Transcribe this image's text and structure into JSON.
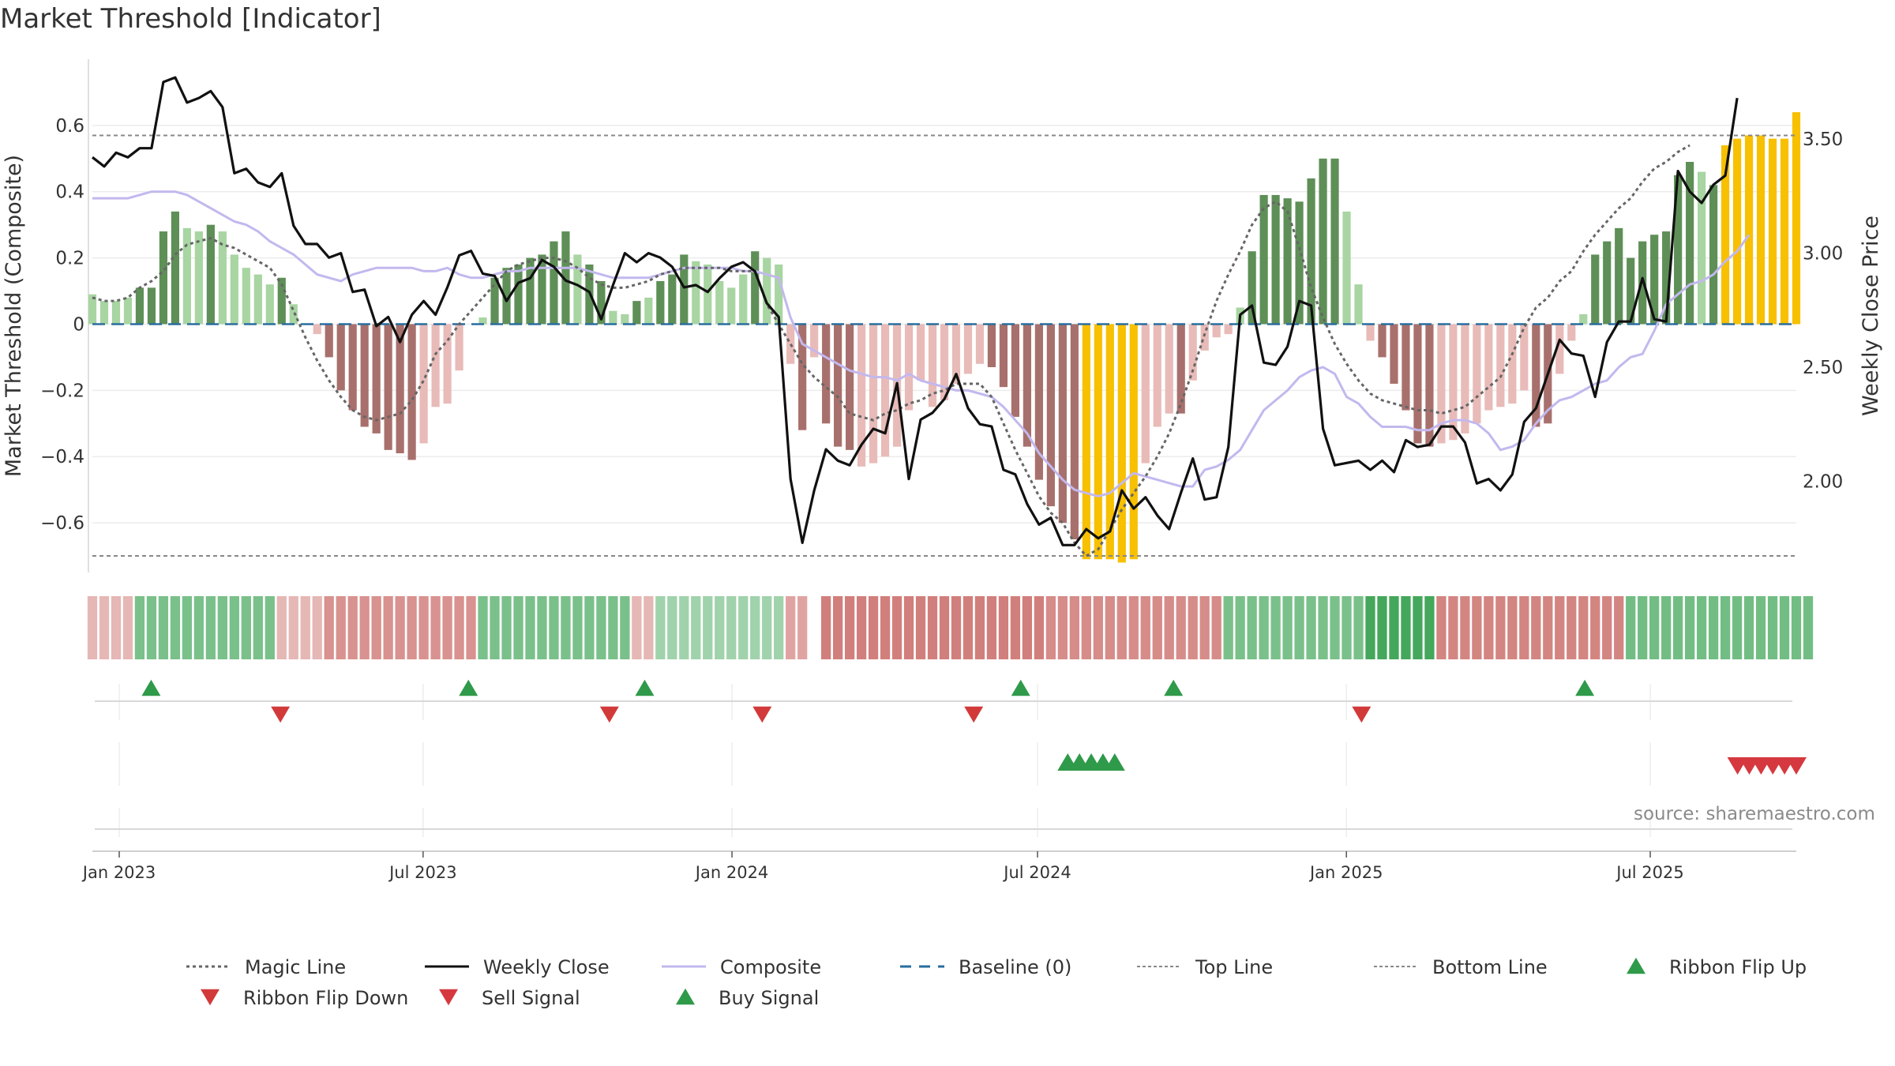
{
  "title": "Market Threshold [Indicator]",
  "source": "source: sharemaestro.com",
  "colors": {
    "dark_green": "#5e8f57",
    "light_green": "#a8d5a2",
    "dark_red": "#a8706c",
    "light_red": "#e8bbb8",
    "yellow": "#f7c000",
    "close": "#111111",
    "composite": "#c3b8ee",
    "magic": "#666666",
    "baseline": "#2a6e9e",
    "ref_lines": "#888888",
    "signal_green": "#2f9a4a",
    "signal_red": "#d5393f"
  },
  "chart_data": {
    "type": "bar",
    "title": "Market Threshold [Indicator]",
    "ylabel": "Market Threshold (Composite)",
    "y2label": "Weekly Close Price",
    "ylim": [
      -0.75,
      0.8
    ],
    "y2lim": [
      1.6,
      3.85
    ],
    "yticks": [
      0.6,
      0.4,
      0.2,
      0,
      -0.2,
      -0.4,
      -0.6
    ],
    "ytick_labels": [
      "0.6",
      "0.4",
      "0.2",
      "0",
      "−0.2",
      "−0.4",
      "−0.6"
    ],
    "y2ticks": [
      3.5,
      3.0,
      2.5,
      2.0
    ],
    "y2tick_labels": [
      "3.50",
      "3.00",
      "2.50",
      "2.00"
    ],
    "x_start": "2022-12-16",
    "x_end": "2025-09-26",
    "xticks": [
      "2023-01-01",
      "2023-07-01",
      "2024-01-01",
      "2024-07-01",
      "2025-01-01",
      "2025-07-01"
    ],
    "xtick_labels": [
      "Jan 2023",
      "Jul 2023",
      "Jan 2024",
      "Jul 2024",
      "Jan 2025",
      "Jul 2025"
    ],
    "top_line": 0.57,
    "bottom_line": -0.7,
    "baseline": 0,
    "grid": true,
    "bars": [
      0.09,
      0.07,
      0.07,
      0.08,
      0.11,
      0.11,
      0.28,
      0.34,
      0.29,
      0.28,
      0.3,
      0.28,
      0.21,
      0.17,
      0.15,
      0.12,
      0.14,
      0.06,
      0,
      -0.03,
      -0.1,
      -0.2,
      -0.26,
      -0.31,
      -0.33,
      -0.38,
      -0.39,
      -0.41,
      -0.36,
      -0.25,
      -0.24,
      -0.14,
      0,
      0.02,
      0.14,
      0.17,
      0.18,
      0.2,
      0.21,
      0.25,
      0.28,
      0.21,
      0.18,
      0.13,
      0.04,
      0.03,
      0.07,
      0.08,
      0.13,
      0.15,
      0.21,
      0.19,
      0.18,
      0.13,
      0.11,
      0.15,
      0.22,
      0.2,
      0.18,
      -0.12,
      -0.32,
      -0.1,
      -0.3,
      -0.37,
      -0.38,
      -0.43,
      -0.42,
      -0.4,
      -0.37,
      -0.26,
      -0.17,
      -0.25,
      -0.23,
      -0.18,
      -0.15,
      -0.12,
      -0.13,
      -0.19,
      -0.28,
      -0.37,
      -0.47,
      -0.55,
      -0.6,
      -0.65,
      -0.71,
      -0.71,
      -0.71,
      -0.72,
      -0.71,
      -0.42,
      -0.31,
      -0.27,
      -0.27,
      -0.17,
      -0.08,
      -0.04,
      -0.03,
      0.05,
      0.22,
      0.39,
      0.39,
      0.38,
      0.37,
      0.44,
      0.5,
      0.5,
      0.34,
      0.12,
      -0.05,
      -0.1,
      -0.18,
      -0.26,
      -0.36,
      -0.37,
      -0.36,
      -0.35,
      -0.33,
      -0.3,
      -0.26,
      -0.25,
      -0.24,
      -0.2,
      -0.31,
      -0.3,
      -0.15,
      -0.05,
      0.03,
      0.21,
      0.25,
      0.29,
      0.2,
      0.25,
      0.27,
      0.28,
      0.45,
      0.49,
      0.46,
      0.42,
      0.54,
      0.56,
      0.57,
      0.57,
      0.56,
      0.56,
      0.64
    ],
    "bar_types": [
      "l",
      "l",
      "l",
      "l",
      "d",
      "d",
      "d",
      "d",
      "l",
      "l",
      "d",
      "l",
      "l",
      "l",
      "l",
      "l",
      "d",
      "l",
      "l",
      "l",
      "d",
      "d",
      "d",
      "d",
      "d",
      "d",
      "d",
      "d",
      "l",
      "l",
      "l",
      "l",
      "l",
      "l",
      "d",
      "d",
      "d",
      "d",
      "d",
      "d",
      "d",
      "l",
      "d",
      "d",
      "l",
      "l",
      "d",
      "l",
      "d",
      "d",
      "d",
      "l",
      "l",
      "l",
      "l",
      "l",
      "d",
      "l",
      "l",
      "l",
      "d",
      "l",
      "d",
      "d",
      "d",
      "l",
      "l",
      "l",
      "l",
      "l",
      "l",
      "l",
      "l",
      "l",
      "l",
      "l",
      "d",
      "d",
      "d",
      "d",
      "d",
      "d",
      "d",
      "d",
      "y",
      "y",
      "y",
      "y",
      "y",
      "l",
      "l",
      "l",
      "d",
      "l",
      "l",
      "l",
      "l",
      "l",
      "d",
      "d",
      "d",
      "d",
      "d",
      "d",
      "d",
      "d",
      "l",
      "l",
      "l",
      "d",
      "d",
      "d",
      "d",
      "d",
      "l",
      "l",
      "l",
      "l",
      "l",
      "l",
      "l",
      "l",
      "d",
      "d",
      "l",
      "l",
      "l",
      "d",
      "d",
      "d",
      "d",
      "d",
      "d",
      "d",
      "d",
      "d",
      "l",
      "d",
      "y",
      "y",
      "y",
      "y",
      "y",
      "y",
      "y"
    ],
    "weekly_close": [
      3.42,
      3.38,
      3.44,
      3.42,
      3.46,
      3.46,
      3.75,
      3.77,
      3.66,
      3.68,
      3.71,
      3.64,
      3.35,
      3.37,
      3.31,
      3.29,
      3.35,
      3.12,
      3.04,
      3.04,
      2.98,
      3.0,
      2.83,
      2.84,
      2.68,
      2.72,
      2.61,
      2.73,
      2.79,
      2.73,
      2.85,
      2.99,
      3.01,
      2.91,
      2.9,
      2.79,
      2.87,
      2.89,
      2.97,
      2.94,
      2.88,
      2.86,
      2.83,
      2.71,
      2.86,
      3.0,
      2.96,
      3.0,
      2.98,
      2.94,
      2.85,
      2.86,
      2.83,
      2.89,
      2.94,
      2.96,
      2.92,
      2.78,
      2.72,
      2.01,
      1.73,
      1.96,
      2.14,
      2.09,
      2.07,
      2.16,
      2.23,
      2.21,
      2.43,
      2.01,
      2.27,
      2.3,
      2.36,
      2.47,
      2.32,
      2.25,
      2.24,
      2.05,
      2.03,
      1.9,
      1.81,
      1.84,
      1.72,
      1.72,
      1.79,
      1.75,
      1.78,
      1.96,
      1.88,
      1.93,
      1.85,
      1.79,
      1.95,
      2.1,
      1.92,
      1.93,
      2.15,
      2.73,
      2.77,
      2.52,
      2.51,
      2.59,
      2.79,
      2.77,
      2.23,
      2.07,
      2.08,
      2.09,
      2.05,
      2.09,
      2.04,
      2.18,
      2.15,
      2.16,
      2.24,
      2.24,
      2.17,
      1.99,
      2.01,
      1.96,
      2.03,
      2.26,
      2.32,
      2.47,
      2.62,
      2.56,
      2.55,
      2.37,
      2.61,
      2.7,
      2.7,
      2.89,
      2.71,
      2.7,
      3.36,
      3.27,
      3.22,
      3.3,
      3.34,
      3.68
    ],
    "composite": [
      0.38,
      0.38,
      0.38,
      0.38,
      0.39,
      0.4,
      0.4,
      0.4,
      0.39,
      0.37,
      0.35,
      0.33,
      0.31,
      0.3,
      0.28,
      0.25,
      0.23,
      0.21,
      0.18,
      0.15,
      0.14,
      0.13,
      0.15,
      0.16,
      0.17,
      0.17,
      0.17,
      0.17,
      0.16,
      0.16,
      0.17,
      0.15,
      0.14,
      0.14,
      0.15,
      0.16,
      0.16,
      0.17,
      0.17,
      0.17,
      0.17,
      0.17,
      0.16,
      0.15,
      0.14,
      0.14,
      0.14,
      0.14,
      0.15,
      0.16,
      0.17,
      0.17,
      0.17,
      0.17,
      0.17,
      0.16,
      0.16,
      0.15,
      0.14,
      0.02,
      -0.06,
      -0.08,
      -0.1,
      -0.12,
      -0.14,
      -0.15,
      -0.16,
      -0.16,
      -0.17,
      -0.15,
      -0.17,
      -0.18,
      -0.19,
      -0.2,
      -0.2,
      -0.21,
      -0.22,
      -0.25,
      -0.29,
      -0.33,
      -0.39,
      -0.43,
      -0.47,
      -0.5,
      -0.51,
      -0.52,
      -0.51,
      -0.48,
      -0.45,
      -0.46,
      -0.47,
      -0.48,
      -0.49,
      -0.49,
      -0.44,
      -0.43,
      -0.41,
      -0.38,
      -0.32,
      -0.26,
      -0.23,
      -0.2,
      -0.16,
      -0.14,
      -0.13,
      -0.15,
      -0.22,
      -0.24,
      -0.28,
      -0.31,
      -0.31,
      -0.31,
      -0.32,
      -0.32,
      -0.3,
      -0.29,
      -0.29,
      -0.3,
      -0.33,
      -0.38,
      -0.37,
      -0.35,
      -0.3,
      -0.26,
      -0.23,
      -0.22,
      -0.2,
      -0.18,
      -0.17,
      -0.13,
      -0.1,
      -0.09,
      -0.02,
      0.06,
      0.09,
      0.12,
      0.13,
      0.15,
      0.19,
      0.22,
      0.27
    ],
    "magic_line": [
      0.08,
      0.07,
      0.07,
      0.08,
      0.11,
      0.13,
      0.16,
      0.21,
      0.24,
      0.25,
      0.26,
      0.24,
      0.23,
      0.21,
      0.19,
      0.17,
      0.12,
      0.04,
      -0.04,
      -0.11,
      -0.17,
      -0.22,
      -0.26,
      -0.28,
      -0.29,
      -0.28,
      -0.27,
      -0.23,
      -0.17,
      -0.09,
      -0.05,
      0,
      0.04,
      0.08,
      0.12,
      0.16,
      0.18,
      0.19,
      0.2,
      0.2,
      0.19,
      0.17,
      0.14,
      0.12,
      0.11,
      0.11,
      0.12,
      0.13,
      0.15,
      0.16,
      0.17,
      0.17,
      0.17,
      0.17,
      0.16,
      0.16,
      0.16,
      0.06,
      0,
      -0.06,
      -0.12,
      -0.16,
      -0.19,
      -0.22,
      -0.27,
      -0.28,
      -0.29,
      -0.27,
      -0.26,
      -0.24,
      -0.23,
      -0.21,
      -0.2,
      -0.18,
      -0.18,
      -0.18,
      -0.22,
      -0.3,
      -0.38,
      -0.45,
      -0.52,
      -0.57,
      -0.6,
      -0.66,
      -0.7,
      -0.68,
      -0.62,
      -0.56,
      -0.51,
      -0.46,
      -0.4,
      -0.33,
      -0.24,
      -0.14,
      -0.03,
      0.07,
      0.15,
      0.22,
      0.3,
      0.35,
      0.37,
      0.34,
      0.23,
      0.11,
      0.02,
      -0.06,
      -0.12,
      -0.17,
      -0.21,
      -0.23,
      -0.24,
      -0.25,
      -0.26,
      -0.26,
      -0.27,
      -0.26,
      -0.25,
      -0.22,
      -0.19,
      -0.16,
      -0.09,
      -0.01,
      0.05,
      0.08,
      0.13,
      0.16,
      0.22,
      0.27,
      0.31,
      0.35,
      0.38,
      0.43,
      0.47,
      0.49,
      0.52,
      0.54
    ],
    "ribbon": [
      -0.25,
      -0.25,
      -0.25,
      -0.25,
      0.55,
      0.55,
      0.55,
      0.55,
      0.55,
      0.55,
      0.55,
      0.55,
      0.55,
      0.55,
      0.55,
      0.55,
      -0.25,
      -0.25,
      -0.25,
      -0.25,
      -0.55,
      -0.55,
      -0.55,
      -0.55,
      -0.55,
      -0.55,
      -0.55,
      -0.55,
      -0.55,
      -0.55,
      -0.55,
      -0.55,
      -0.55,
      0.55,
      0.55,
      0.55,
      0.55,
      0.55,
      0.55,
      0.55,
      0.55,
      0.55,
      0.55,
      0.55,
      0.55,
      0.55,
      -0.25,
      -0.25,
      0.3,
      0.3,
      0.3,
      0.3,
      0.3,
      0.3,
      0.3,
      0.3,
      0.3,
      0.3,
      0.3,
      -0.4,
      -0.4,
      null,
      -0.7,
      -0.7,
      -0.7,
      -0.7,
      -0.7,
      -0.7,
      -0.7,
      -0.7,
      -0.7,
      -0.7,
      -0.7,
      -0.7,
      -0.7,
      -0.7,
      -0.7,
      -0.7,
      -0.7,
      -0.7,
      -0.7,
      -0.6,
      -0.6,
      -0.6,
      -0.6,
      -0.6,
      -0.6,
      -0.6,
      -0.6,
      -0.6,
      -0.6,
      -0.6,
      -0.6,
      -0.6,
      -0.6,
      -0.6,
      0.55,
      0.55,
      0.55,
      0.55,
      0.55,
      0.55,
      0.55,
      0.55,
      0.55,
      0.55,
      0.55,
      0.55,
      0.9,
      0.9,
      0.9,
      0.9,
      0.9,
      0.9,
      -0.65,
      -0.65,
      -0.65,
      -0.65,
      -0.65,
      -0.65,
      -0.65,
      -0.65,
      -0.65,
      -0.65,
      -0.65,
      -0.65,
      -0.65,
      -0.65,
      -0.65,
      -0.65,
      0.6,
      0.6,
      0.6,
      0.6,
      0.6,
      0.6,
      0.6,
      0.6,
      0.6,
      0.6,
      0.6,
      0.6,
      0.6,
      0.6,
      0.6,
      0.6
    ],
    "ribbon_flip_up": [
      "2023-01-20",
      "2023-07-28",
      "2023-11-10",
      "2024-06-21",
      "2024-09-20",
      "2025-05-23"
    ],
    "ribbon_flip_down": [
      "2023-04-07",
      "2023-10-20",
      "2024-01-19",
      "2024-05-24",
      "2025-01-10"
    ],
    "buy_signal": [
      "2024-07-19",
      "2024-07-26",
      "2024-08-02",
      "2024-08-09",
      "2024-08-16"
    ],
    "sell_signal": [
      "2025-08-22",
      "2025-08-29",
      "2025-09-05",
      "2025-09-12",
      "2025-09-19",
      "2025-09-26"
    ],
    "legend": [
      "Magic Line",
      "Weekly Close",
      "Composite",
      "Baseline (0)",
      "Top Line",
      "Bottom Line",
      "Ribbon Flip Up",
      "Ribbon Flip Down",
      "Sell Signal",
      "Buy Signal"
    ],
    "legend_position": "bottom"
  }
}
